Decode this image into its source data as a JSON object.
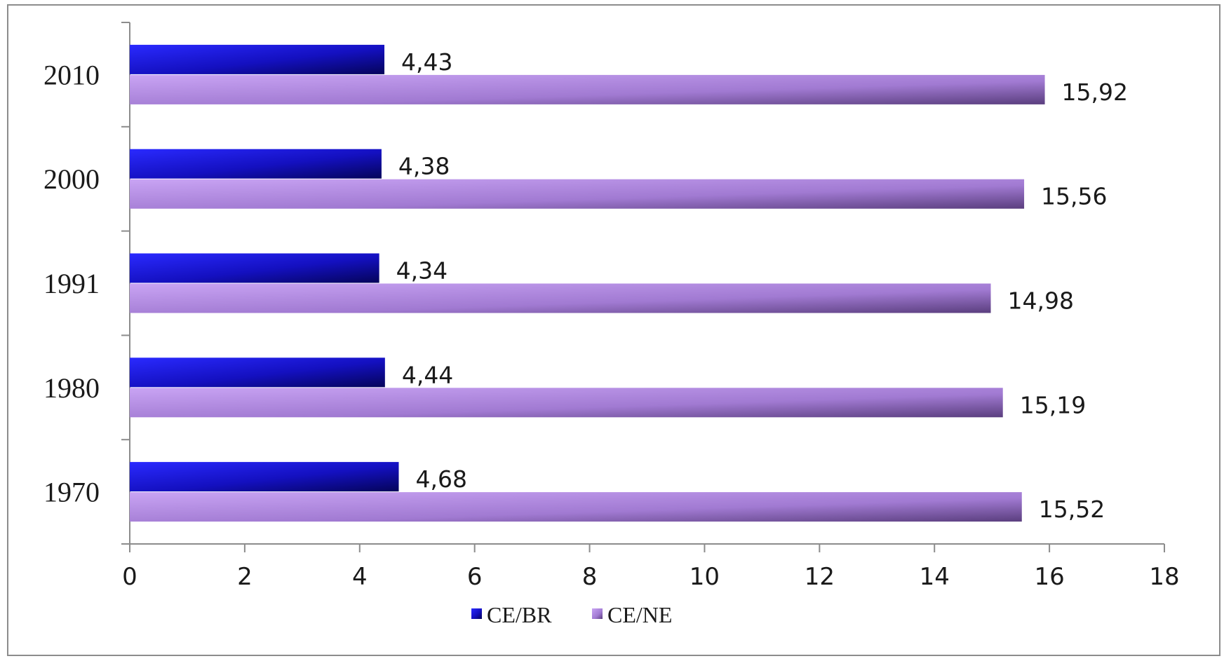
{
  "chart_data": {
    "type": "bar",
    "orientation": "horizontal",
    "categories": [
      "2010",
      "2000",
      "1991",
      "1980",
      "1970"
    ],
    "series": [
      {
        "name": "CE/BR",
        "values": [
          4.43,
          4.38,
          4.34,
          4.44,
          4.68
        ],
        "labels": [
          "4,43",
          "4,38",
          "4,34",
          "4,44",
          "4,68"
        ],
        "color": "#1a14c8"
      },
      {
        "name": "CE/NE",
        "values": [
          15.92,
          15.56,
          14.98,
          15.19,
          15.52
        ],
        "labels": [
          "15,92",
          "15,56",
          "14,98",
          "15,19",
          "15,52"
        ],
        "color": "#a57fd6"
      }
    ],
    "xlim": [
      0,
      18
    ],
    "xticks": [
      "0",
      "2",
      "4",
      "6",
      "8",
      "10",
      "12",
      "14",
      "16",
      "18"
    ],
    "grid": false,
    "legend": "bottom",
    "title": "",
    "xlabel": "",
    "ylabel": ""
  }
}
